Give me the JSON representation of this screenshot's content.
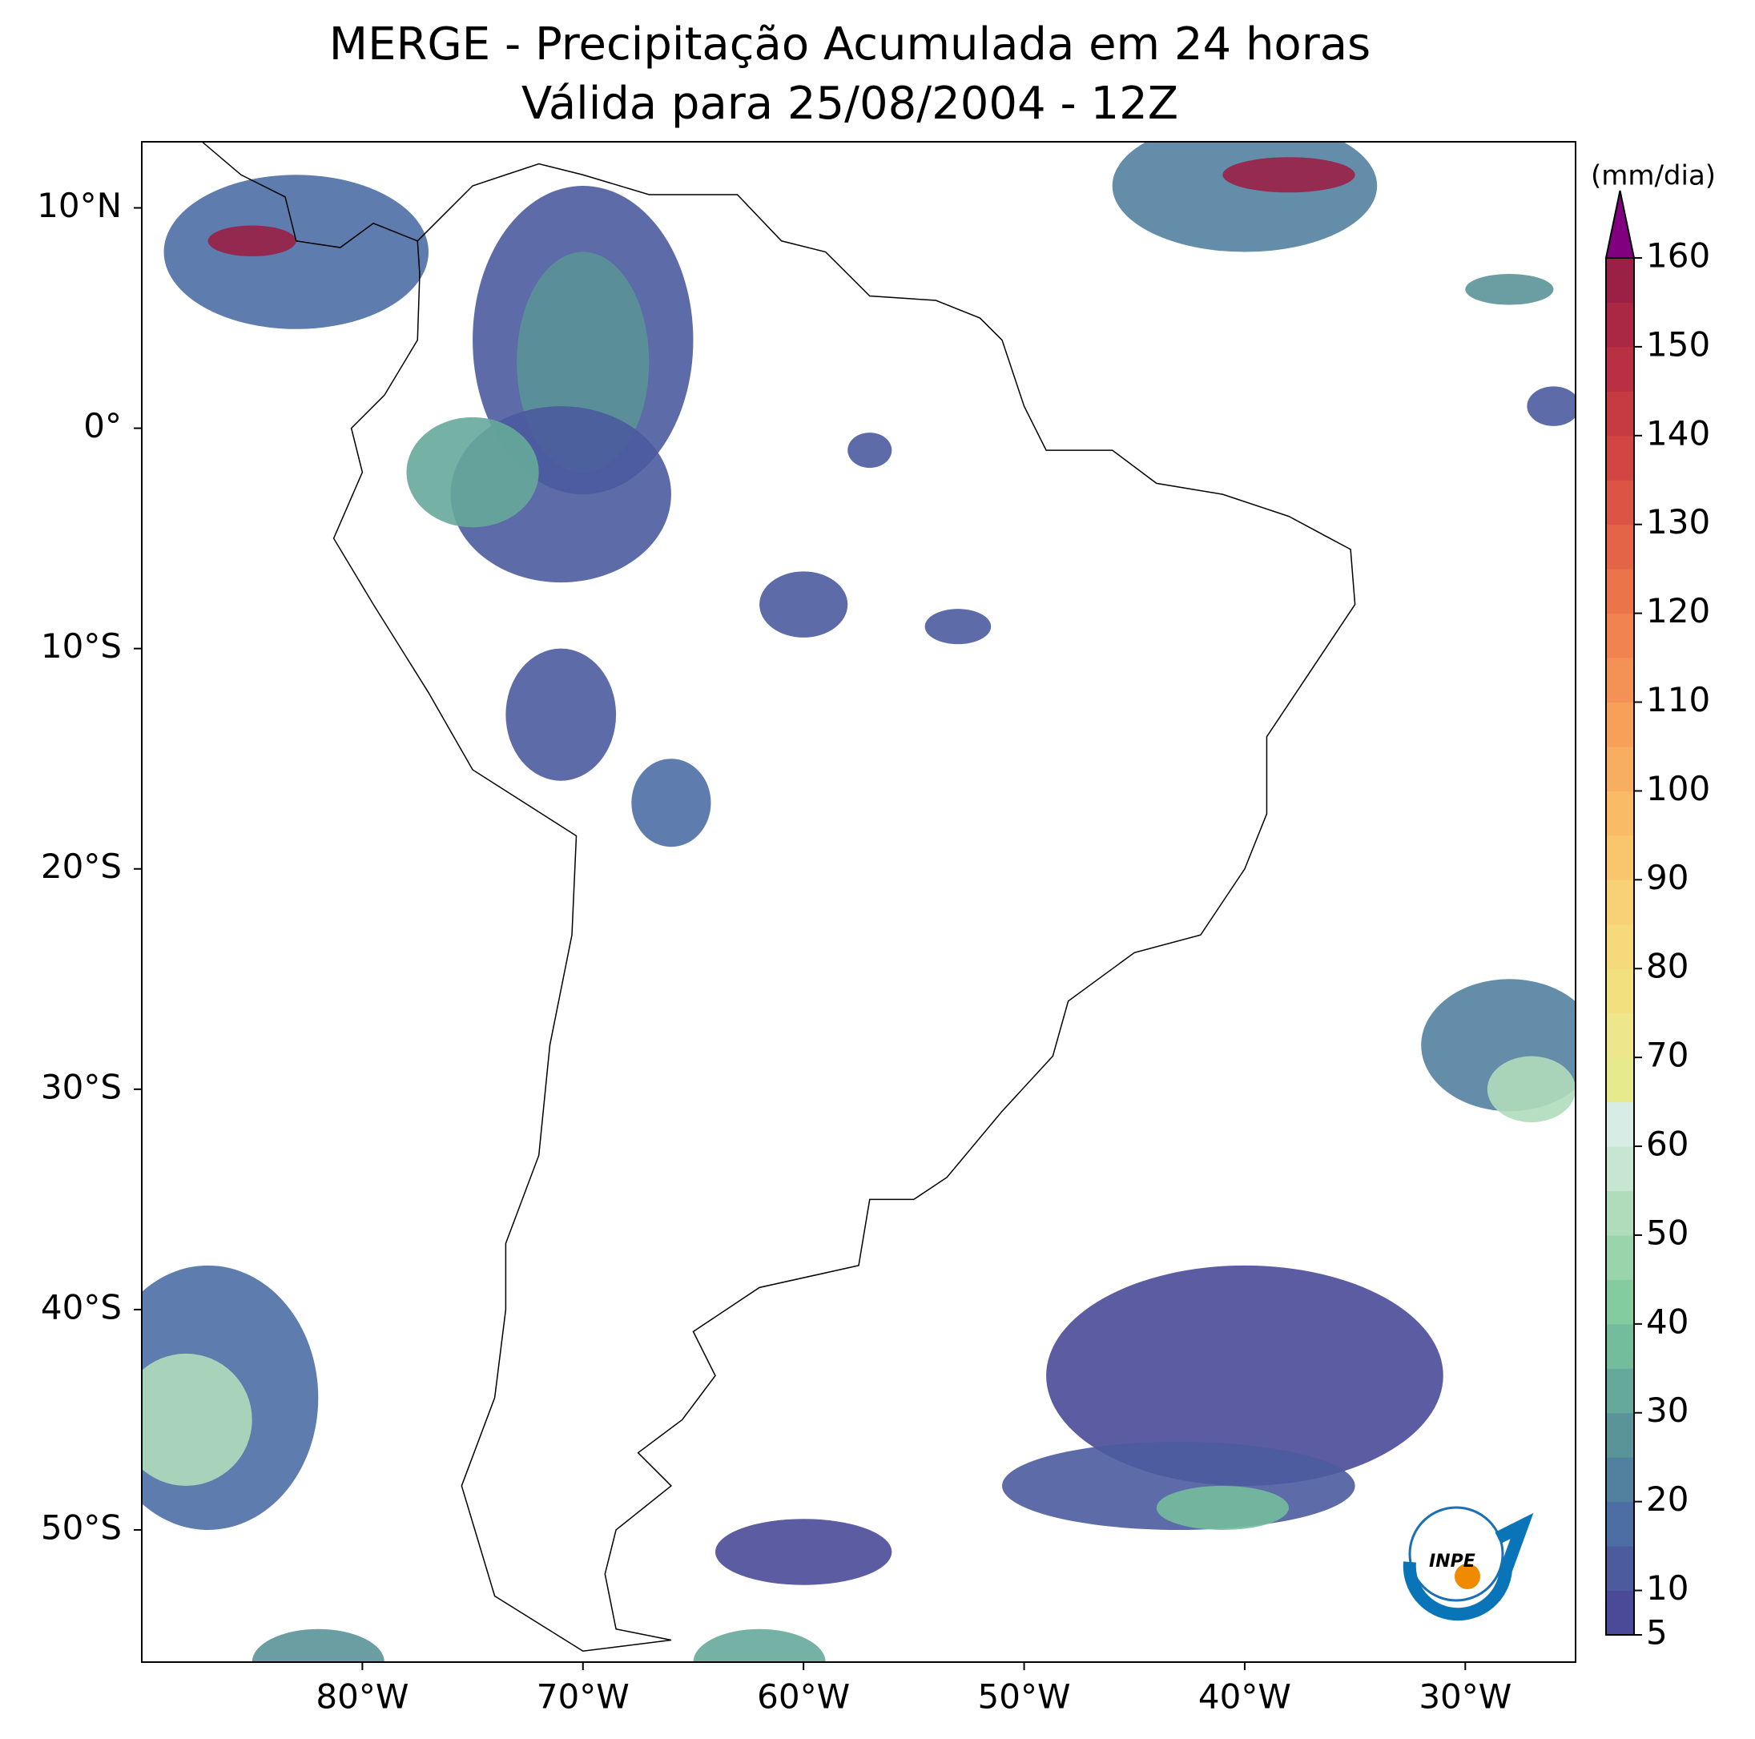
{
  "chart_data": {
    "type": "map",
    "title": "MERGE - Precipitação Acumulada em 24 horas",
    "subtitle": "Válida para 25/08/2004 - 12Z",
    "xlim": [
      -90,
      -25
    ],
    "ylim": [
      -56,
      13
    ],
    "xticks": [
      {
        "value": -80,
        "label": "80°W"
      },
      {
        "value": -70,
        "label": "70°W"
      },
      {
        "value": -60,
        "label": "60°W"
      },
      {
        "value": -50,
        "label": "50°W"
      },
      {
        "value": -40,
        "label": "40°W"
      },
      {
        "value": -30,
        "label": "30°W"
      }
    ],
    "yticks": [
      {
        "value": 10,
        "label": "10°N"
      },
      {
        "value": 0,
        "label": "0°"
      },
      {
        "value": -10,
        "label": "10°S"
      },
      {
        "value": -20,
        "label": "20°S"
      },
      {
        "value": -30,
        "label": "30°S"
      },
      {
        "value": -40,
        "label": "40°S"
      },
      {
        "value": -50,
        "label": "50°S"
      }
    ],
    "colorbar": {
      "label": "(mm/dia)",
      "lim": [
        5,
        160
      ],
      "ticks": [
        5,
        10,
        20,
        30,
        40,
        50,
        60,
        70,
        80,
        90,
        100,
        110,
        120,
        130,
        140,
        150,
        160
      ],
      "levels": [
        5,
        10,
        15,
        20,
        25,
        30,
        35,
        40,
        45,
        50,
        55,
        60,
        65,
        70,
        75,
        80,
        85,
        90,
        95,
        100,
        105,
        110,
        115,
        120,
        125,
        130,
        135,
        140,
        145,
        150,
        155,
        160
      ],
      "colors": [
        "#4a4a98",
        "#4b5b9e",
        "#4d6ea5",
        "#52819f",
        "#5a9498",
        "#66a99a",
        "#74bd9c",
        "#84cba0",
        "#9ad4aa",
        "#b0dcbb",
        "#c6e6d2",
        "#d8ece6",
        "#e6ea8c",
        "#eee68a",
        "#f2e07f",
        "#f6d97a",
        "#f8d075",
        "#f9c66e",
        "#f9bb66",
        "#f8ae60",
        "#f6a05a",
        "#f49255",
        "#f08350",
        "#eb744b",
        "#e46447",
        "#dc5444",
        "#d24542",
        "#c63a42",
        "#b93043",
        "#aa2844",
        "#9a2046"
      ],
      "extend_color": "#800080"
    },
    "logo_text": "INPE"
  }
}
